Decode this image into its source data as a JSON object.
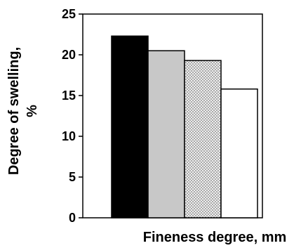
{
  "chart_data": {
    "type": "bar",
    "categories": [
      "",
      "",
      "",
      ""
    ],
    "values": [
      22.3,
      20.5,
      19.3,
      15.8
    ],
    "bar_fills": [
      "solid-black",
      "solid-gray",
      "dotted",
      "white"
    ],
    "colors": {
      "black": "#000000",
      "gray": "#c8c8c8",
      "dot_bg": "#eeeeee",
      "white": "#ffffff"
    },
    "xlabel": "Fineness degree, mm",
    "ylabel_line1": "Degree of swelling,",
    "ylabel_line2": "%",
    "ylim": [
      0,
      25
    ],
    "yticks": [
      "0",
      "5",
      "10",
      "15",
      "20",
      "25"
    ],
    "grid": false,
    "legend": "none"
  }
}
